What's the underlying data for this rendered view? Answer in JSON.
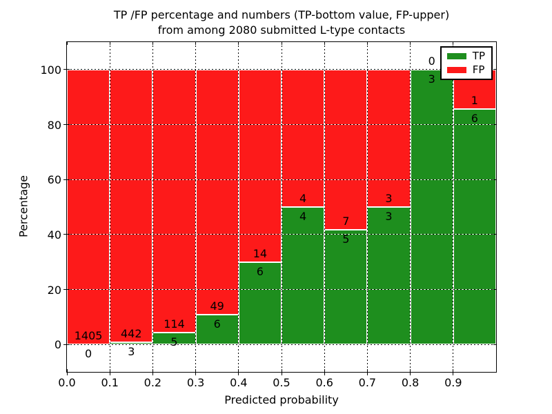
{
  "figure": {
    "title_line1": "TP /FP percentage and numbers (TP-bottom value, FP-upper)",
    "title_line2": "from among 2080 submitted L-type contacts"
  },
  "chart_data": {
    "type": "bar",
    "subtype": "stacked-percentage-histogram",
    "title": "TP /FP percentage and numbers (TP-bottom value, FP-upper) from among 2080 submitted L-type contacts",
    "xlabel": "Predicted probability",
    "ylabel": "Percentage",
    "xlim": [
      0.0,
      1.0
    ],
    "ylim": [
      -10,
      110
    ],
    "bin_width": 0.1,
    "x_ticks": [
      0.0,
      0.1,
      0.2,
      0.3,
      0.4,
      0.5,
      0.6,
      0.7,
      0.8,
      0.9
    ],
    "x_tick_labels": [
      "0.0",
      "0.1",
      "0.2",
      "0.3",
      "0.4",
      "0.5",
      "0.6",
      "0.7",
      "0.8",
      "0.9"
    ],
    "y_ticks": [
      0,
      20,
      40,
      60,
      80,
      100
    ],
    "y_tick_labels": [
      "0",
      "20",
      "40",
      "60",
      "80",
      "100"
    ],
    "series": [
      {
        "name": "TP",
        "color": "#1e8e1e",
        "counts": [
          0,
          3,
          5,
          6,
          6,
          4,
          5,
          3,
          3,
          6
        ]
      },
      {
        "name": "FP",
        "color": "#fd1a1a",
        "counts": [
          1405,
          442,
          114,
          49,
          14,
          4,
          7,
          3,
          0,
          1
        ]
      }
    ],
    "tp_percentage_by_bin": [
      0.0,
      0.67,
      4.2,
      10.91,
      30.0,
      50.0,
      41.67,
      50.0,
      100.0,
      85.71
    ],
    "total_contacts": 2080,
    "legend": {
      "location": "upper right",
      "entries": [
        "TP",
        "FP"
      ]
    },
    "grid": {
      "linestyle": "dotted",
      "color": "#000000"
    }
  },
  "colors": {
    "tp_green": "#1e8e1e",
    "fp_red": "#fd1a1a",
    "background": "#ffffff",
    "spine": "#000000"
  }
}
